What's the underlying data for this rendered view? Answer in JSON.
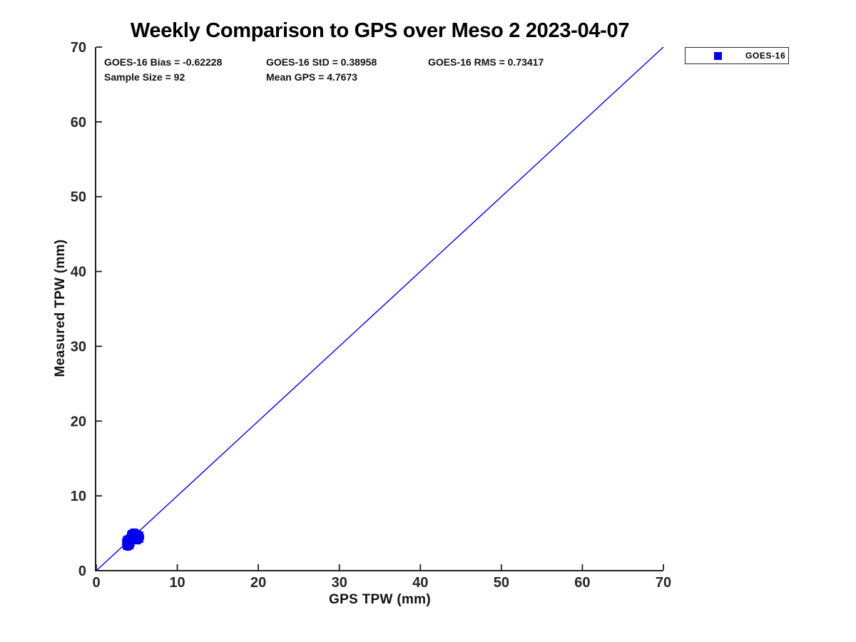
{
  "figure": {
    "background_color": "#ffffff",
    "accent_color": "#0000ee",
    "axis_color": "#1f1f1f",
    "tick_label_color": "#262626"
  },
  "stats": {
    "bias": "GOES-16 Bias = -0.62228",
    "std": "GOES-16 StD = 0.38958",
    "rms": "GOES-16 RMS = 0.73417",
    "sample_size": "Sample Size = 92",
    "mean_gps": "Mean GPS = 4.7673"
  },
  "legend": {
    "label": "GOES-16",
    "marker": "square",
    "marker_color": "#0000ee",
    "position": "top-right-outside"
  },
  "chart_data": {
    "type": "scatter",
    "title": "Weekly Comparison to GPS over Meso 2 2023-04-07",
    "xlabel": "GPS TPW (mm)",
    "ylabel": "Measured TPW (mm)",
    "xlim": [
      0,
      70
    ],
    "ylim": [
      0,
      70
    ],
    "xticks": [
      0,
      10,
      20,
      30,
      40,
      50,
      60,
      70
    ],
    "yticks": [
      0,
      10,
      20,
      30,
      40,
      50,
      60,
      70
    ],
    "grid": false,
    "legend_position": "top-right-outside",
    "reference_line": {
      "type": "identity",
      "from": [
        0,
        0
      ],
      "to": [
        70,
        70
      ],
      "color": "#0000ee"
    },
    "annotations": {
      "goes16_bias": -0.62228,
      "goes16_std": 0.38958,
      "goes16_rms": 0.73417,
      "sample_size": 92,
      "mean_gps": 4.7673
    },
    "series": [
      {
        "name": "GOES-16",
        "marker": "square",
        "color": "#0000ee",
        "points": [
          [
            4.5,
            5.3
          ],
          [
            4.7,
            5.3
          ],
          [
            4.9,
            5.25
          ],
          [
            4.2,
            5.1
          ],
          [
            4.4,
            5.15
          ],
          [
            4.6,
            5.1
          ],
          [
            4.8,
            5.1
          ],
          [
            5.0,
            5.05
          ],
          [
            5.2,
            5.1
          ],
          [
            4.1,
            4.9
          ],
          [
            4.3,
            4.9
          ],
          [
            4.5,
            4.95
          ],
          [
            4.7,
            4.9
          ],
          [
            4.9,
            4.9
          ],
          [
            5.1,
            4.85
          ],
          [
            5.3,
            4.9
          ],
          [
            5.5,
            4.9
          ],
          [
            4.1,
            4.7
          ],
          [
            4.3,
            4.7
          ],
          [
            4.5,
            4.7
          ],
          [
            4.7,
            4.75
          ],
          [
            4.9,
            4.7
          ],
          [
            5.1,
            4.7
          ],
          [
            5.3,
            4.65
          ],
          [
            5.5,
            4.7
          ],
          [
            4.0,
            4.5
          ],
          [
            4.2,
            4.5
          ],
          [
            4.4,
            4.55
          ],
          [
            4.6,
            4.5
          ],
          [
            4.8,
            4.5
          ],
          [
            5.0,
            4.45
          ],
          [
            5.2,
            4.5
          ],
          [
            5.4,
            4.5
          ],
          [
            5.6,
            4.5
          ],
          [
            4.0,
            4.3
          ],
          [
            4.2,
            4.3
          ],
          [
            4.4,
            4.3
          ],
          [
            4.6,
            4.35
          ],
          [
            4.8,
            4.3
          ],
          [
            5.0,
            4.3
          ],
          [
            5.2,
            4.25
          ],
          [
            5.4,
            4.3
          ],
          [
            4.1,
            4.1
          ],
          [
            4.3,
            4.1
          ],
          [
            4.5,
            4.1
          ],
          [
            4.7,
            4.05
          ],
          [
            4.9,
            4.1
          ],
          [
            5.1,
            4.1
          ],
          [
            5.3,
            4.1
          ],
          [
            5.5,
            4.05
          ],
          [
            4.2,
            3.9
          ],
          [
            4.4,
            3.9
          ],
          [
            4.6,
            3.85
          ],
          [
            4.8,
            3.9
          ],
          [
            5.0,
            3.9
          ],
          [
            5.2,
            3.85
          ],
          [
            3.5,
            4.0
          ],
          [
            3.6,
            4.3
          ],
          [
            3.7,
            4.1
          ],
          [
            3.8,
            4.4
          ],
          [
            3.9,
            4.2
          ],
          [
            3.6,
            3.7
          ],
          [
            3.8,
            3.8
          ],
          [
            3.5,
            3.4
          ],
          [
            3.7,
            3.5
          ],
          [
            3.9,
            3.6
          ],
          [
            3.6,
            3.1
          ],
          [
            3.8,
            3.2
          ],
          [
            4.0,
            3.3
          ],
          [
            4.2,
            3.4
          ],
          [
            4.4,
            3.5
          ],
          [
            3.9,
            3.0
          ],
          [
            4.1,
            3.1
          ],
          [
            4.3,
            3.2
          ],
          [
            4.0,
            3.7
          ],
          [
            4.1,
            3.6
          ],
          [
            4.2,
            3.75
          ],
          [
            4.45,
            4.8
          ],
          [
            4.65,
            4.6
          ],
          [
            4.85,
            4.4
          ],
          [
            5.05,
            4.2
          ],
          [
            4.25,
            4.2
          ],
          [
            4.55,
            4.4
          ],
          [
            4.75,
            4.2
          ],
          [
            4.95,
            4.6
          ],
          [
            5.15,
            4.4
          ],
          [
            4.35,
            4.0
          ],
          [
            4.55,
            3.95
          ],
          [
            4.05,
            4.4
          ],
          [
            4.15,
            4.6
          ],
          [
            3.95,
            4.1
          ],
          [
            4.65,
            5.0
          ]
        ]
      }
    ]
  }
}
